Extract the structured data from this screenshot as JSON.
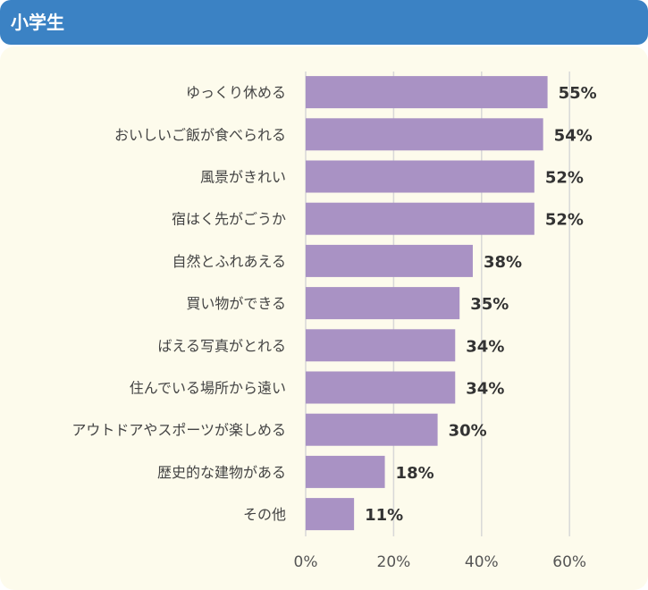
{
  "header": {
    "title": "小学生"
  },
  "chart_data": {
    "type": "bar",
    "orientation": "horizontal",
    "categories": [
      "ゆっくり休める",
      "おいしいご飯が食べられる",
      "風景がきれい",
      "宿はく先がごうか",
      "自然とふれあえる",
      "買い物ができる",
      "ばえる写真がとれる",
      "住んでいる場所から遠い",
      "アウトドアやスポーツが楽しめる",
      "歴史的な建物がある",
      "その他"
    ],
    "values": [
      55,
      54,
      52,
      52,
      38,
      35,
      34,
      34,
      30,
      18,
      11
    ],
    "value_labels": [
      "55%",
      "54%",
      "52%",
      "52%",
      "38%",
      "35%",
      "34%",
      "34%",
      "30%",
      "18%",
      "11%"
    ],
    "xlim": [
      0,
      60
    ],
    "ticks": [
      0,
      20,
      40,
      60
    ],
    "tick_labels": [
      "0%",
      "20%",
      "40%",
      "60%"
    ],
    "grid": true,
    "bar_color": "#a992c4",
    "grid_color": "#d8d8d8"
  }
}
